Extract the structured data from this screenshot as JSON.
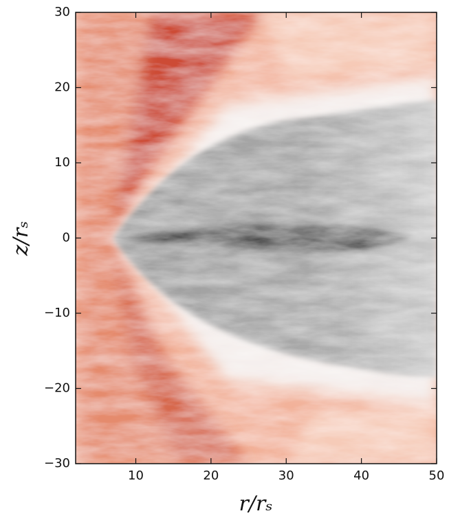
{
  "chart_data": {
    "type": "heatmap",
    "xlabel": "r/rₛ",
    "ylabel": "z/rₛ",
    "xlim": [
      2,
      50
    ],
    "ylim": [
      -30,
      30
    ],
    "xticks": [
      10,
      20,
      30,
      40,
      50
    ],
    "yticks": [
      {
        "value": -30,
        "label": "−30"
      },
      {
        "value": -20,
        "label": "−20"
      },
      {
        "value": -10,
        "label": "−10"
      },
      0,
      10,
      20,
      30
    ]
  }
}
